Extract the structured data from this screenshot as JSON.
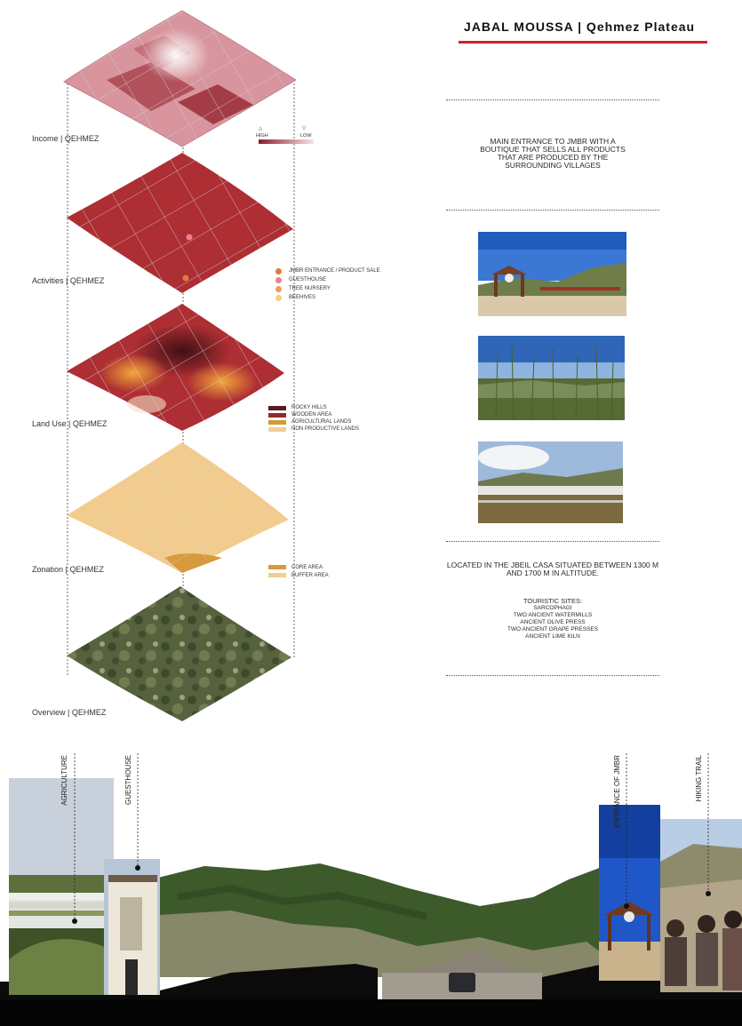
{
  "header": {
    "title": "JABAL MOUSSA | Qehmez Plateau",
    "accent": "#c8242c"
  },
  "layers": [
    {
      "label": "Income | QEHMEZ",
      "color": "#d7959c"
    },
    {
      "label": "Activities | QEHMEZ",
      "color": "#ac2d31"
    },
    {
      "label": "Land Use | QEHMEZ",
      "color": "#ac2d31"
    },
    {
      "label": "Zonation | QEHMEZ",
      "color": "#f2cc8e"
    },
    {
      "label": "Overview | QEHMEZ",
      "color": "#55613a"
    }
  ],
  "income_legend": {
    "high": "HIGH",
    "low": "LOW"
  },
  "activities_legend": [
    {
      "label": "JMBR ENTRANCE / PRODUCT SALE",
      "color": "#e27a3c"
    },
    {
      "label": "GUESTHOUSE",
      "color": "#e9828e"
    },
    {
      "label": "TREE NURSERY",
      "color": "#ee9e56"
    },
    {
      "label": "BEEHIVES",
      "color": "#f3cf88"
    }
  ],
  "landuse_legend": [
    {
      "label": "ROCKY HILLS",
      "color": "#5b1a1e"
    },
    {
      "label": "WOODEN AREA",
      "color": "#8f2a2f"
    },
    {
      "label": "AGRICULTURAL LANDS",
      "color": "#d39a35"
    },
    {
      "label": "NON PRODUCTIVE LANDS",
      "color": "#f0cf95"
    }
  ],
  "zonation_legend": [
    {
      "label": "CORE AREA",
      "color": "#d79a3d"
    },
    {
      "label": "BUFFER AREA",
      "color": "#f1cf8f"
    }
  ],
  "notes": {
    "entrance": "MAIN ENTRANCE TO JMBR WITH A BOUTIQUE THAT SELLS ALL PRODUCTS THAT ARE PRODUCED BY THE SURROUNDING VILLAGES",
    "location": "LOCATED IN THE JBEIL CASA SITUATED BETWEEN 1300 M AND 1700 M IN ALTITUDE.",
    "sites_title": "TOURISTIC SITES:",
    "sites": [
      "Sarcophagi",
      "Two Ancient watermills",
      "Ancient Olive Press",
      "Two ancient grape presses",
      "Ancient Lime kiln"
    ]
  },
  "section_labels": {
    "agriculture": "AGRICULTURE",
    "guesthouse": "GUESTHOUSE",
    "entrance": "ENTRANCE OF JMBR",
    "hiking": "HIKING TRAIL"
  }
}
